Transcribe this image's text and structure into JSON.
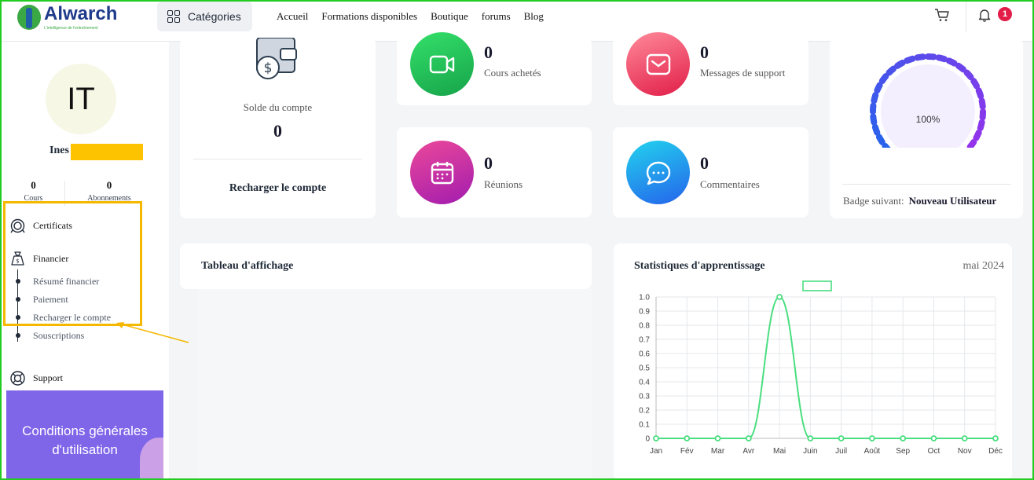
{
  "header": {
    "logo_text": "Alwarch",
    "logo_tagline": "L'intelligence de l'entraînement",
    "categories_label": "Catégories",
    "nav": [
      "Accueil",
      "Formations disponibles",
      "Boutique",
      "forums",
      "Blog"
    ],
    "notification_count": "1"
  },
  "sidebar": {
    "avatar_initials": "IT",
    "username": "Ines",
    "stats": [
      {
        "value": "0",
        "label": "Cours"
      },
      {
        "value": "0",
        "label": "Abonnements"
      }
    ],
    "menu": {
      "certificates": "Certificats",
      "financial": "Financier",
      "financial_sub": [
        "Résumé financier",
        "Paiement",
        "Recharger le compte",
        "Souscriptions"
      ],
      "support": "Support"
    },
    "promo_text": "Conditions générales d'utilisation"
  },
  "cards": {
    "balance": {
      "label": "Solde du compte",
      "value": "0",
      "action": "Recharger le compte"
    },
    "courses": {
      "value": "0",
      "label": "Cours achetés",
      "color": "#22c55e"
    },
    "messages": {
      "value": "0",
      "label": "Messages de support",
      "color": "#f43f5e"
    },
    "meetings": {
      "value": "0",
      "label": "Réunions",
      "color": "#c026d3"
    },
    "comments": {
      "value": "0",
      "label": "Commentaires",
      "color": "#0ea5e9"
    },
    "badge": {
      "percent_label": "100%",
      "percent": 100,
      "next_label": "Badge suivant:",
      "next_value": "Nouveau Utilisateur"
    }
  },
  "board": {
    "title": "Tableau d'affichage"
  },
  "learning_stats": {
    "title": "Statistiques d'apprentissage",
    "date": "mai 2024"
  },
  "chart_data": {
    "type": "line",
    "categories": [
      "Jan",
      "Fév",
      "Mar",
      "Avr",
      "Mai",
      "Juin",
      "Juil",
      "Août",
      "Sep",
      "Oct",
      "Nov",
      "Déc"
    ],
    "series": [
      {
        "values": [
          0,
          0,
          0,
          0,
          1,
          0,
          0,
          0,
          0,
          0,
          0,
          0
        ]
      }
    ],
    "ylim": [
      0,
      1
    ],
    "yticks": [
      "0",
      "0.1",
      "0.2",
      "0.3",
      "0.4",
      "0.5",
      "0.6",
      "0.7",
      "0.8",
      "0.9",
      "1.0"
    ],
    "grid": true,
    "color": "#4ade80"
  }
}
